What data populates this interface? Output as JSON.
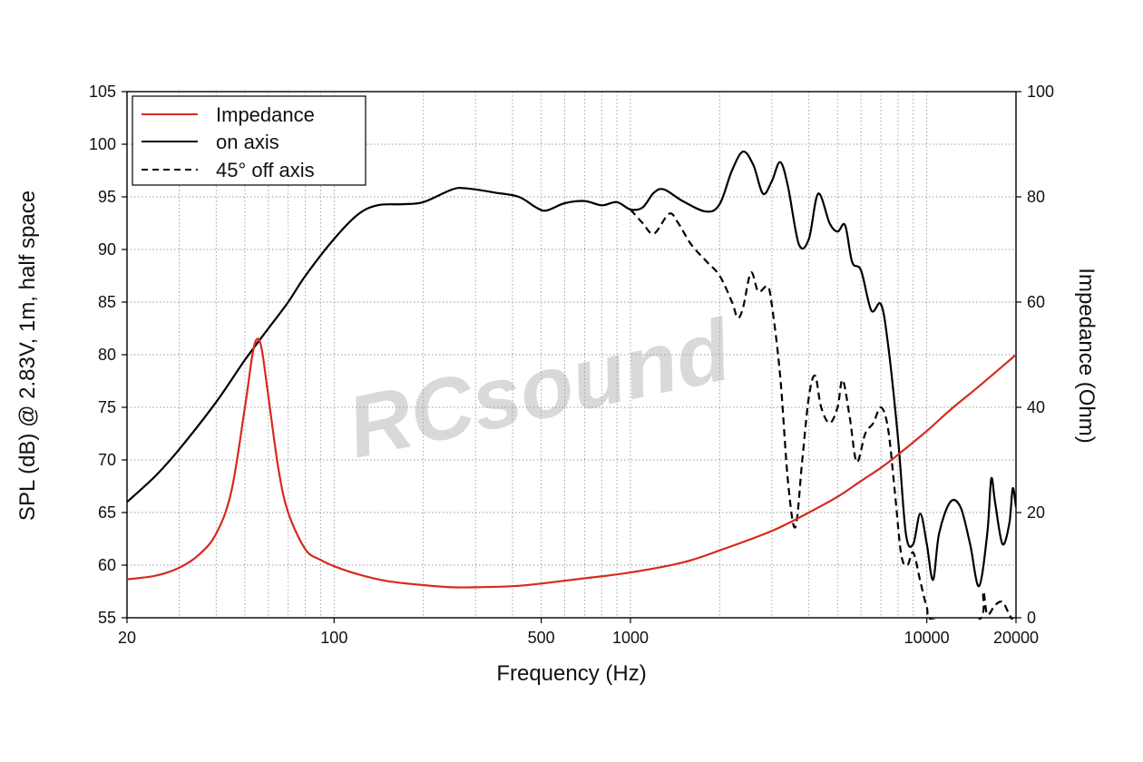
{
  "chart_data": {
    "type": "line",
    "xlabel": "Frequency (Hz)",
    "ylabel_left": "SPL (dB) @ 2.83V, 1m, half space",
    "ylabel_right": "Impedance (Ohm)",
    "x_scale": "log",
    "xlim": [
      20,
      20000
    ],
    "ylim_left": [
      55,
      105
    ],
    "ylim_right": [
      0,
      100
    ],
    "x_tick_labels": [
      "20",
      "100",
      "500",
      "1000",
      "10000",
      "20000"
    ],
    "x_ticks": [
      20,
      100,
      500,
      1000,
      10000,
      20000
    ],
    "y_left_ticks": [
      55,
      60,
      65,
      70,
      75,
      80,
      85,
      90,
      95,
      100,
      105
    ],
    "y_right_ticks": [
      0,
      20,
      40,
      60,
      80,
      100
    ],
    "grid": true,
    "legend_position": "top-left",
    "watermark": "RCsound",
    "colors": {
      "impedance": "#d62a1e",
      "on_axis": "#000000",
      "off_axis": "#000000",
      "grid": "#9a9a9a",
      "watermark": "#d9d9d9"
    },
    "series": [
      {
        "name": "Impedance",
        "axis": "right",
        "style": "solid",
        "points": [
          [
            20,
            7.3
          ],
          [
            25,
            8
          ],
          [
            30,
            9.5
          ],
          [
            35,
            12
          ],
          [
            40,
            16
          ],
          [
            45,
            24
          ],
          [
            50,
            40
          ],
          [
            53,
            50
          ],
          [
            55,
            53
          ],
          [
            57,
            51
          ],
          [
            60,
            42
          ],
          [
            65,
            28
          ],
          [
            70,
            20
          ],
          [
            80,
            13
          ],
          [
            90,
            11
          ],
          [
            100,
            9.8
          ],
          [
            120,
            8.3
          ],
          [
            150,
            7
          ],
          [
            200,
            6.2
          ],
          [
            250,
            5.8
          ],
          [
            300,
            5.8
          ],
          [
            400,
            6
          ],
          [
            500,
            6.5
          ],
          [
            700,
            7.5
          ],
          [
            1000,
            8.6
          ],
          [
            1500,
            10.5
          ],
          [
            2000,
            12.8
          ],
          [
            3000,
            16.5
          ],
          [
            4000,
            20
          ],
          [
            5000,
            23
          ],
          [
            6000,
            26
          ],
          [
            7000,
            28.5
          ],
          [
            8000,
            31
          ],
          [
            10000,
            35.5
          ],
          [
            12000,
            39.5
          ],
          [
            15000,
            44
          ],
          [
            20000,
            50
          ]
        ]
      },
      {
        "name": "on axis",
        "axis": "left",
        "style": "solid",
        "points": [
          [
            20,
            66
          ],
          [
            25,
            68.5
          ],
          [
            30,
            71
          ],
          [
            40,
            75.5
          ],
          [
            50,
            79.5
          ],
          [
            60,
            82.5
          ],
          [
            70,
            85
          ],
          [
            80,
            87.5
          ],
          [
            100,
            91
          ],
          [
            120,
            93.3
          ],
          [
            140,
            94.2
          ],
          [
            170,
            94.3
          ],
          [
            200,
            94.5
          ],
          [
            250,
            95.7
          ],
          [
            280,
            95.8
          ],
          [
            350,
            95.4
          ],
          [
            420,
            95
          ],
          [
            480,
            94
          ],
          [
            520,
            93.7
          ],
          [
            600,
            94.4
          ],
          [
            700,
            94.6
          ],
          [
            800,
            94.2
          ],
          [
            900,
            94.5
          ],
          [
            1000,
            93.8
          ],
          [
            1100,
            94
          ],
          [
            1200,
            95.4
          ],
          [
            1300,
            95.7
          ],
          [
            1500,
            94.6
          ],
          [
            1800,
            93.6
          ],
          [
            2000,
            94.3
          ],
          [
            2200,
            97.5
          ],
          [
            2400,
            99.3
          ],
          [
            2600,
            98
          ],
          [
            2800,
            95.3
          ],
          [
            3000,
            96.5
          ],
          [
            3200,
            98.3
          ],
          [
            3400,
            96
          ],
          [
            3700,
            90.5
          ],
          [
            4000,
            91
          ],
          [
            4300,
            95.3
          ],
          [
            4700,
            92.5
          ],
          [
            5000,
            91.7
          ],
          [
            5300,
            92.3
          ],
          [
            5600,
            88.8
          ],
          [
            6000,
            88
          ],
          [
            6500,
            84.2
          ],
          [
            7000,
            84.8
          ],
          [
            7400,
            81
          ],
          [
            8000,
            72
          ],
          [
            8500,
            63
          ],
          [
            9000,
            62
          ],
          [
            9500,
            64.9
          ],
          [
            10000,
            62
          ],
          [
            10500,
            58.6
          ],
          [
            11000,
            63
          ],
          [
            12000,
            66
          ],
          [
            13000,
            65.5
          ],
          [
            14000,
            62
          ],
          [
            15000,
            58
          ],
          [
            16000,
            63
          ],
          [
            16500,
            68.2
          ],
          [
            17000,
            66
          ],
          [
            18000,
            62
          ],
          [
            19000,
            64
          ],
          [
            19500,
            67.3
          ],
          [
            20000,
            65.5
          ]
        ]
      },
      {
        "name": "45° off axis",
        "axis": "left",
        "style": "dashed",
        "points": [
          [
            1000,
            93.8
          ],
          [
            1100,
            92.5
          ],
          [
            1200,
            91.5
          ],
          [
            1350,
            93.4
          ],
          [
            1450,
            92.5
          ],
          [
            1600,
            90.5
          ],
          [
            1800,
            88.9
          ],
          [
            2000,
            87.5
          ],
          [
            2200,
            85
          ],
          [
            2300,
            83.5
          ],
          [
            2400,
            84.5
          ],
          [
            2550,
            87.8
          ],
          [
            2700,
            86
          ],
          [
            2900,
            86.5
          ],
          [
            3000,
            84.7
          ],
          [
            3200,
            78
          ],
          [
            3400,
            68
          ],
          [
            3600,
            63.6
          ],
          [
            3800,
            70
          ],
          [
            4000,
            76
          ],
          [
            4200,
            78
          ],
          [
            4400,
            75
          ],
          [
            4700,
            73.5
          ],
          [
            5000,
            75
          ],
          [
            5200,
            77.6
          ],
          [
            5500,
            74
          ],
          [
            5800,
            69.8
          ],
          [
            6200,
            72.5
          ],
          [
            6600,
            73.5
          ],
          [
            7000,
            75
          ],
          [
            7400,
            73
          ],
          [
            7800,
            67
          ],
          [
            8200,
            61
          ],
          [
            8600,
            60
          ],
          [
            9000,
            61.2
          ],
          [
            9500,
            58.5
          ],
          [
            10000,
            56
          ],
          [
            10500,
            54.8
          ],
          [
            15000,
            54.8
          ],
          [
            15500,
            57.5
          ],
          [
            16000,
            55.3
          ],
          [
            17000,
            56.2
          ],
          [
            18000,
            56.5
          ],
          [
            19000,
            55.3
          ],
          [
            20000,
            54.2
          ]
        ]
      }
    ]
  }
}
